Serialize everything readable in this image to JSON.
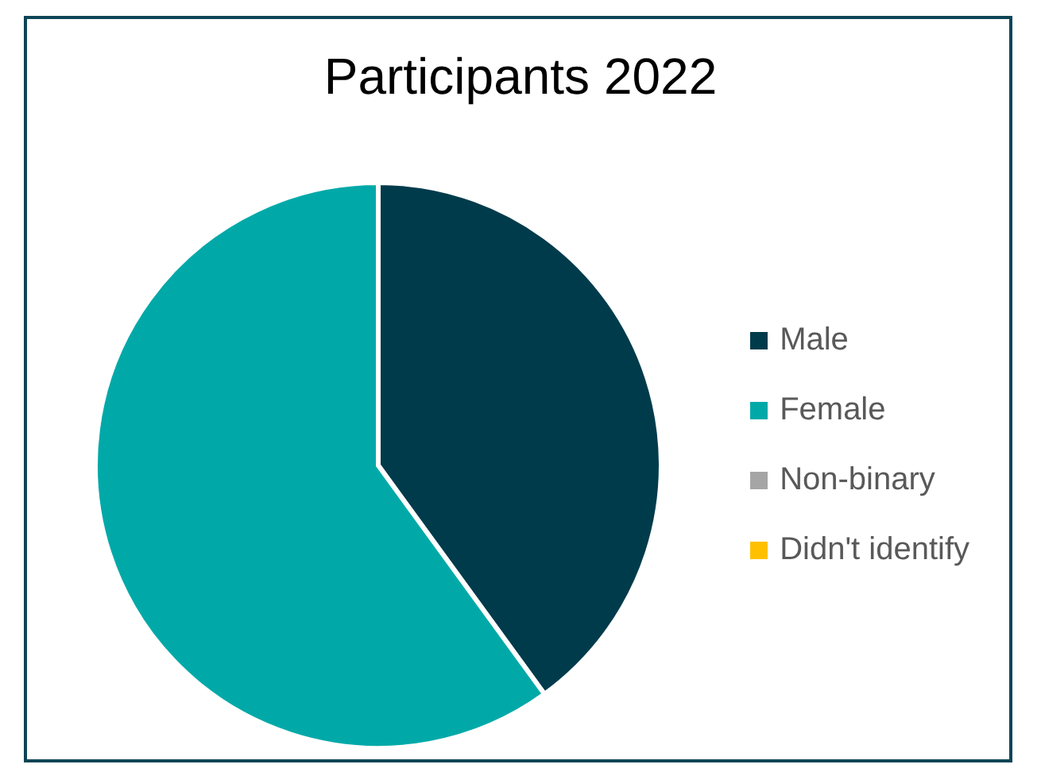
{
  "chart_data": {
    "type": "pie",
    "title": "Participants 2022",
    "categories": [
      "Male",
      "Female",
      "Non-binary",
      "Didn't identify"
    ],
    "values": [
      40,
      60,
      0,
      0
    ],
    "colors": [
      "#003b4c",
      "#00a9a8",
      "#a5a5a5",
      "#ffc000"
    ],
    "legend": "right"
  }
}
